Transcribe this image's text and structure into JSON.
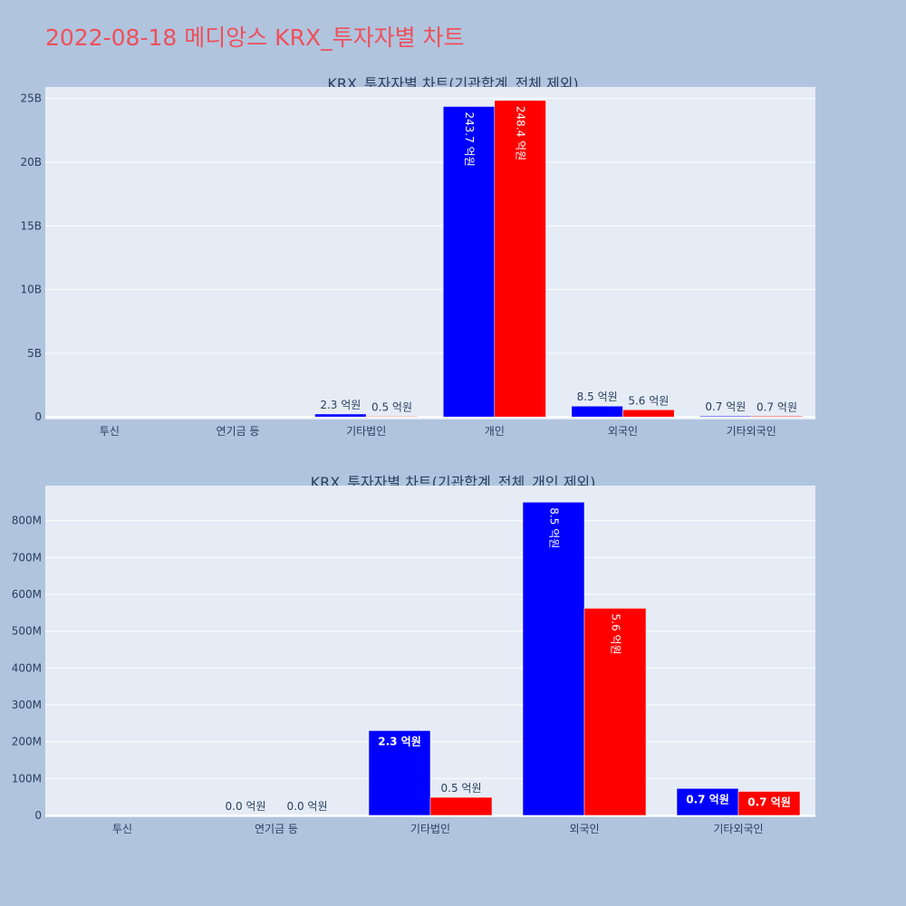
{
  "page_title": "2022-08-18 메디앙스 KRX_투자자별 차트",
  "colors": {
    "background": "#b0c4de",
    "plot_bg": "#e5ecf6",
    "title": "#ef4f5a",
    "series1": "#0000ff",
    "series2": "#ff0000",
    "text": "#2a3f5f"
  },
  "chart_data": [
    {
      "type": "bar",
      "title": "KRX_투자자별 차트(기관합계_전체 제외)",
      "categories": [
        "투신",
        "연기금 등",
        "기타법인",
        "개인",
        "외국인",
        "기타외국인"
      ],
      "series": [
        {
          "color": "#0000ff",
          "values": [
            0,
            0,
            230000000,
            24370000000,
            850000000,
            70000000
          ],
          "labels": [
            "",
            "",
            "2.3 억원",
            "243.7 억원",
            "8.5 억원",
            "0.7 억원"
          ]
        },
        {
          "color": "#ff0000",
          "values": [
            0,
            0,
            50000000,
            24840000000,
            560000000,
            65000000
          ],
          "labels": [
            "",
            "",
            "0.5 억원",
            "248.4 억원",
            "5.6 억원",
            "0.7 억원"
          ]
        }
      ],
      "ylim": [
        -200000000,
        25900000000
      ],
      "yticks": [
        0,
        5000000000,
        10000000000,
        15000000000,
        20000000000,
        25000000000
      ],
      "ytick_labels": [
        "0",
        "5B",
        "10B",
        "15B",
        "20B",
        "25B"
      ],
      "grid": true
    },
    {
      "type": "bar",
      "title": "KRX_투자자별 차트(기관합계_전체_개인 제외)",
      "categories": [
        "투신",
        "연기금 등",
        "기타법인",
        "외국인",
        "기타외국인"
      ],
      "series": [
        {
          "color": "#0000ff",
          "values": [
            0,
            0,
            230000000,
            850000000,
            73000000
          ],
          "labels": [
            "",
            "0.0 억원",
            "2.3 억원",
            "8.5 억원",
            "0.7 억원"
          ]
        },
        {
          "color": "#ff0000",
          "values": [
            0,
            0,
            49000000,
            562000000,
            65000000
          ],
          "labels": [
            "",
            "0.0 억원",
            "0.5 억원",
            "5.6 억원",
            "0.7 억원"
          ]
        }
      ],
      "ylim": [
        -5000000,
        895000000
      ],
      "yticks": [
        0,
        100000000,
        200000000,
        300000000,
        400000000,
        500000000,
        600000000,
        700000000,
        800000000
      ],
      "ytick_labels": [
        "0",
        "100M",
        "200M",
        "300M",
        "400M",
        "500M",
        "600M",
        "700M",
        "800M"
      ],
      "grid": true
    }
  ]
}
